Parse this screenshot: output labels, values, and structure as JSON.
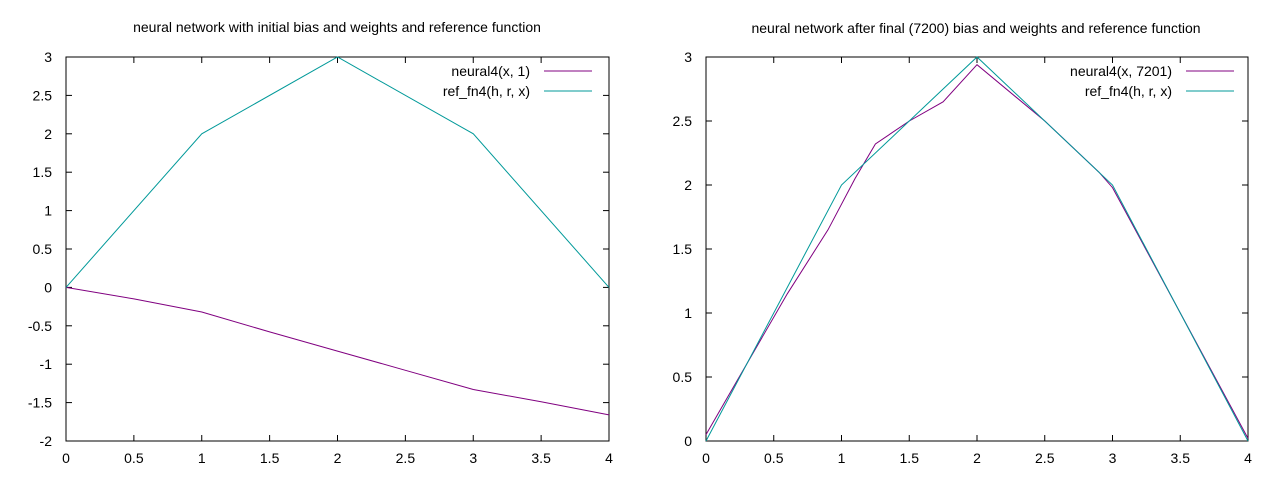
{
  "chart_data": [
    {
      "type": "line",
      "title": "neural network with initial bias and weights and reference function",
      "xlim": [
        0,
        4
      ],
      "ylim": [
        -2,
        3
      ],
      "x_ticks": [
        "0",
        "0.5",
        "1",
        "1.5",
        "2",
        "2.5",
        "3",
        "3.5",
        "4"
      ],
      "y_ticks": [
        "-2",
        "-1.5",
        "-1",
        "-0.5",
        "0",
        "0.5",
        "1",
        "1.5",
        "2",
        "2.5",
        "3"
      ],
      "grid": false,
      "legend_position": "top-right",
      "series": [
        {
          "name": "neural4(x, 1)",
          "color": "#800080",
          "points": [
            [
              0,
              0
            ],
            [
              0.5,
              -0.15
            ],
            [
              1,
              -0.32
            ],
            [
              1.5,
              -0.58
            ],
            [
              2,
              -0.83
            ],
            [
              2.5,
              -1.08
            ],
            [
              3,
              -1.33
            ],
            [
              3.5,
              -1.49
            ],
            [
              4,
              -1.66
            ]
          ]
        },
        {
          "name": "ref_fn4(h, r, x)",
          "color": "#009999",
          "points": [
            [
              0,
              0
            ],
            [
              1,
              2
            ],
            [
              2,
              3
            ],
            [
              3,
              2
            ],
            [
              4,
              0
            ]
          ]
        }
      ]
    },
    {
      "type": "line",
      "title": "neural network after final (7200) bias and weights and reference function",
      "xlim": [
        0,
        4
      ],
      "ylim": [
        0,
        3
      ],
      "x_ticks": [
        "0",
        "0.5",
        "1",
        "1.5",
        "2",
        "2.5",
        "3",
        "3.5",
        "4"
      ],
      "y_ticks": [
        "0",
        "0.5",
        "1",
        "1.5",
        "2",
        "2.5",
        "3"
      ],
      "grid": false,
      "legend_position": "top-right",
      "series": [
        {
          "name": "neural4(x, 7201)",
          "color": "#800080",
          "points": [
            [
              0,
              0.05
            ],
            [
              0.3,
              0.6
            ],
            [
              0.6,
              1.15
            ],
            [
              0.9,
              1.65
            ],
            [
              1.1,
              2.05
            ],
            [
              1.25,
              2.32
            ],
            [
              1.5,
              2.5
            ],
            [
              1.75,
              2.65
            ],
            [
              2,
              2.94
            ],
            [
              2.5,
              2.5
            ],
            [
              2.9,
              2.1
            ],
            [
              3,
              1.98
            ],
            [
              3.5,
              1.0
            ],
            [
              4,
              0.02
            ]
          ]
        },
        {
          "name": "ref_fn4(h, r, x)",
          "color": "#009999",
          "points": [
            [
              0,
              0
            ],
            [
              1,
              2
            ],
            [
              2,
              3
            ],
            [
              3,
              2
            ],
            [
              4,
              0
            ]
          ]
        }
      ]
    }
  ]
}
